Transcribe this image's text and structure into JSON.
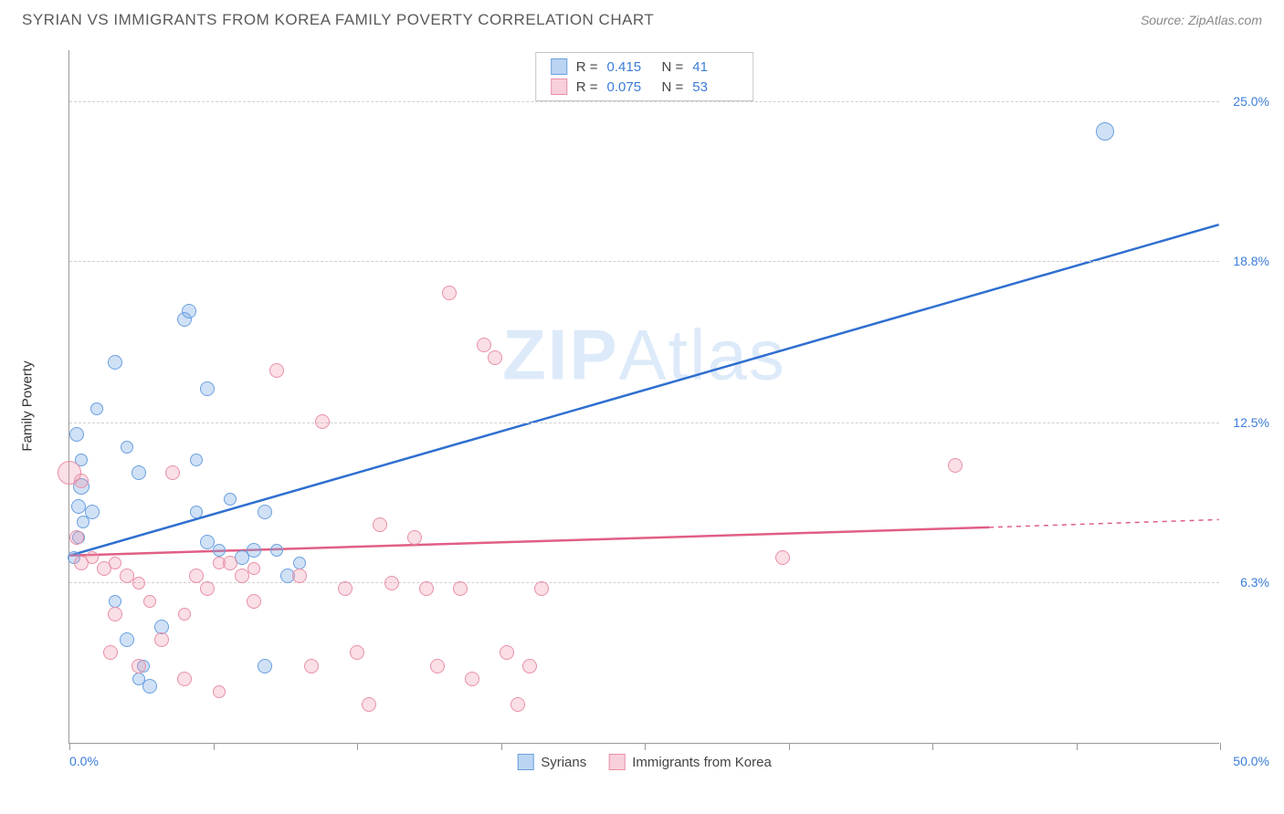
{
  "header": {
    "title": "SYRIAN VS IMMIGRANTS FROM KOREA FAMILY POVERTY CORRELATION CHART",
    "source": "Source: ZipAtlas.com"
  },
  "chart": {
    "type": "scatter",
    "ylabel": "Family Poverty",
    "watermark_zip": "ZIP",
    "watermark_atlas": "Atlas",
    "xlim": [
      0,
      50
    ],
    "ylim": [
      0,
      27
    ],
    "xaxis_min_label": "0.0%",
    "xaxis_max_label": "50.0%",
    "ytick_values": [
      6.3,
      12.5,
      18.8,
      25.0
    ],
    "ytick_labels": [
      "6.3%",
      "12.5%",
      "18.8%",
      "25.0%"
    ],
    "xtick_values": [
      0,
      6.25,
      12.5,
      18.75,
      25,
      31.25,
      37.5,
      43.75,
      50
    ],
    "background_color": "#ffffff",
    "grid_color": "#d0d0d0",
    "axis_color": "#999999",
    "label_text_color": "#3b7dd8",
    "series": [
      {
        "name": "Syrians",
        "color_fill": "rgba(120,170,230,0.35)",
        "color_stroke": "#6aa0e0",
        "trend_color": "#2f6fd0",
        "trend_width": 2.5,
        "trend": {
          "x1": 0,
          "y1": 7.3,
          "x2": 50,
          "y2": 20.2
        },
        "R": "0.415",
        "N": "41",
        "points": [
          {
            "x": 0.3,
            "y": 12.0,
            "r": 8
          },
          {
            "x": 0.5,
            "y": 11.0,
            "r": 7
          },
          {
            "x": 0.5,
            "y": 10.0,
            "r": 9
          },
          {
            "x": 0.4,
            "y": 9.2,
            "r": 8
          },
          {
            "x": 0.6,
            "y": 8.6,
            "r": 7
          },
          {
            "x": 0.4,
            "y": 8.0,
            "r": 7
          },
          {
            "x": 0.2,
            "y": 7.2,
            "r": 7
          },
          {
            "x": 1.0,
            "y": 9.0,
            "r": 8
          },
          {
            "x": 1.2,
            "y": 13.0,
            "r": 7
          },
          {
            "x": 2.0,
            "y": 14.8,
            "r": 8
          },
          {
            "x": 2.5,
            "y": 11.5,
            "r": 7
          },
          {
            "x": 3.0,
            "y": 10.5,
            "r": 8
          },
          {
            "x": 2.0,
            "y": 5.5,
            "r": 7
          },
          {
            "x": 2.5,
            "y": 4.0,
            "r": 8
          },
          {
            "x": 3.0,
            "y": 2.5,
            "r": 7
          },
          {
            "x": 3.5,
            "y": 2.2,
            "r": 8
          },
          {
            "x": 3.2,
            "y": 3.0,
            "r": 7
          },
          {
            "x": 4.0,
            "y": 4.5,
            "r": 8
          },
          {
            "x": 5.0,
            "y": 16.5,
            "r": 8
          },
          {
            "x": 5.2,
            "y": 16.8,
            "r": 8
          },
          {
            "x": 5.5,
            "y": 9.0,
            "r": 7
          },
          {
            "x": 5.5,
            "y": 11.0,
            "r": 7
          },
          {
            "x": 6.0,
            "y": 13.8,
            "r": 8
          },
          {
            "x": 6.0,
            "y": 7.8,
            "r": 8
          },
          {
            "x": 6.5,
            "y": 7.5,
            "r": 7
          },
          {
            "x": 7.0,
            "y": 9.5,
            "r": 7
          },
          {
            "x": 7.5,
            "y": 7.2,
            "r": 8
          },
          {
            "x": 8.0,
            "y": 7.5,
            "r": 8
          },
          {
            "x": 8.5,
            "y": 9.0,
            "r": 8
          },
          {
            "x": 9.0,
            "y": 7.5,
            "r": 7
          },
          {
            "x": 9.5,
            "y": 6.5,
            "r": 8
          },
          {
            "x": 10.0,
            "y": 7.0,
            "r": 7
          },
          {
            "x": 8.5,
            "y": 3.0,
            "r": 8
          },
          {
            "x": 45.0,
            "y": 23.8,
            "r": 10
          }
        ]
      },
      {
        "name": "Immigrants from Korea",
        "color_fill": "rgba(240,150,170,0.3)",
        "color_stroke": "#e890a8",
        "trend_color": "#e15e85",
        "trend_width": 2.5,
        "trend": {
          "x1": 0,
          "y1": 7.3,
          "x2": 40,
          "y2": 8.4
        },
        "trend_dash": {
          "x1": 40,
          "y1": 8.4,
          "x2": 50,
          "y2": 8.7
        },
        "R": "0.075",
        "N": "53",
        "points": [
          {
            "x": 0.0,
            "y": 10.5,
            "r": 13
          },
          {
            "x": 0.5,
            "y": 10.2,
            "r": 8
          },
          {
            "x": 0.3,
            "y": 8.0,
            "r": 8
          },
          {
            "x": 0.5,
            "y": 7.0,
            "r": 8
          },
          {
            "x": 1.0,
            "y": 7.2,
            "r": 7
          },
          {
            "x": 1.5,
            "y": 6.8,
            "r": 8
          },
          {
            "x": 2.0,
            "y": 7.0,
            "r": 7
          },
          {
            "x": 2.5,
            "y": 6.5,
            "r": 8
          },
          {
            "x": 3.0,
            "y": 6.2,
            "r": 7
          },
          {
            "x": 2.0,
            "y": 5.0,
            "r": 8
          },
          {
            "x": 3.5,
            "y": 5.5,
            "r": 7
          },
          {
            "x": 1.8,
            "y": 3.5,
            "r": 8
          },
          {
            "x": 3.0,
            "y": 3.0,
            "r": 8
          },
          {
            "x": 4.0,
            "y": 4.0,
            "r": 8
          },
          {
            "x": 5.0,
            "y": 5.0,
            "r": 7
          },
          {
            "x": 4.5,
            "y": 10.5,
            "r": 8
          },
          {
            "x": 5.5,
            "y": 6.5,
            "r": 8
          },
          {
            "x": 6.0,
            "y": 6.0,
            "r": 8
          },
          {
            "x": 6.5,
            "y": 7.0,
            "r": 7
          },
          {
            "x": 7.0,
            "y": 7.0,
            "r": 8
          },
          {
            "x": 7.5,
            "y": 6.5,
            "r": 8
          },
          {
            "x": 8.0,
            "y": 6.8,
            "r": 7
          },
          {
            "x": 8.0,
            "y": 5.5,
            "r": 8
          },
          {
            "x": 5.0,
            "y": 2.5,
            "r": 8
          },
          {
            "x": 6.5,
            "y": 2.0,
            "r": 7
          },
          {
            "x": 9.0,
            "y": 14.5,
            "r": 8
          },
          {
            "x": 10.0,
            "y": 6.5,
            "r": 8
          },
          {
            "x": 10.5,
            "y": 3.0,
            "r": 8
          },
          {
            "x": 11.0,
            "y": 12.5,
            "r": 8
          },
          {
            "x": 12.0,
            "y": 6.0,
            "r": 8
          },
          {
            "x": 12.5,
            "y": 3.5,
            "r": 8
          },
          {
            "x": 13.0,
            "y": 1.5,
            "r": 8
          },
          {
            "x": 13.5,
            "y": 8.5,
            "r": 8
          },
          {
            "x": 14.0,
            "y": 6.2,
            "r": 8
          },
          {
            "x": 15.0,
            "y": 8.0,
            "r": 8
          },
          {
            "x": 15.5,
            "y": 6.0,
            "r": 8
          },
          {
            "x": 16.0,
            "y": 3.0,
            "r": 8
          },
          {
            "x": 16.5,
            "y": 17.5,
            "r": 8
          },
          {
            "x": 17.0,
            "y": 6.0,
            "r": 8
          },
          {
            "x": 17.5,
            "y": 2.5,
            "r": 8
          },
          {
            "x": 18.0,
            "y": 15.5,
            "r": 8
          },
          {
            "x": 18.5,
            "y": 15.0,
            "r": 8
          },
          {
            "x": 19.0,
            "y": 3.5,
            "r": 8
          },
          {
            "x": 19.5,
            "y": 1.5,
            "r": 8
          },
          {
            "x": 20.0,
            "y": 3.0,
            "r": 8
          },
          {
            "x": 20.5,
            "y": 6.0,
            "r": 8
          },
          {
            "x": 31.0,
            "y": 7.2,
            "r": 8
          },
          {
            "x": 38.5,
            "y": 10.8,
            "r": 8
          }
        ]
      }
    ],
    "legend_top": {
      "r_label": "R  =",
      "n_label": "N  ="
    },
    "legend_bottom_series1": "Syrians",
    "legend_bottom_series2": "Immigrants from Korea"
  }
}
